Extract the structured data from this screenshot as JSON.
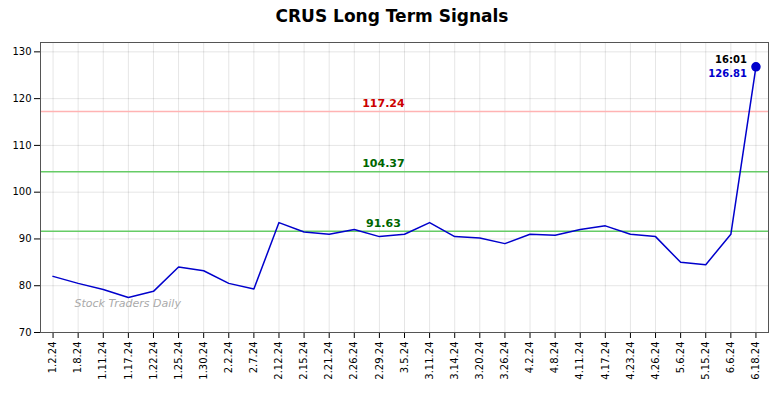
{
  "chart_data": {
    "type": "line",
    "title": "CRUS Long Term Signals",
    "categories": [
      "1.2.24",
      "1.8.24",
      "1.11.24",
      "1.17.24",
      "1.22.24",
      "1.25.24",
      "1.30.24",
      "2.2.24",
      "2.7.24",
      "2.12.24",
      "2.15.24",
      "2.21.24",
      "2.26.24",
      "2.29.24",
      "3.5.24",
      "3.11.24",
      "3.14.24",
      "3.20.24",
      "3.26.24",
      "4.2.24",
      "4.8.24",
      "4.11.24",
      "4.17.24",
      "4.23.24",
      "4.26.24",
      "5.6.24",
      "5.15.24",
      "6.6.24",
      "6.18.24"
    ],
    "values": [
      82.0,
      80.5,
      79.2,
      77.5,
      78.8,
      84.0,
      83.2,
      80.5,
      79.3,
      93.5,
      91.5,
      91.0,
      92.0,
      90.5,
      91.0,
      93.5,
      90.5,
      90.2,
      89.0,
      91.0,
      90.8,
      92.0,
      92.8,
      91.0,
      90.5,
      85.0,
      84.5,
      91.0,
      126.81
    ],
    "color": "#0000cc",
    "ylim": [
      70,
      132
    ],
    "yticks": [
      70,
      80,
      90,
      100,
      110,
      120,
      130
    ],
    "grid": true,
    "hlines": [
      {
        "y": 117.24,
        "label": "117.24",
        "color": "#ffb3b3",
        "label_color": "#cc0000"
      },
      {
        "y": 104.37,
        "label": "104.37",
        "color": "#66cc66",
        "label_color": "#006600"
      },
      {
        "y": 91.63,
        "label": "91.63",
        "color": "#66cc66",
        "label_color": "#006600"
      }
    ],
    "annotations": [
      {
        "x": "6.18.24",
        "y": 126.81,
        "text": "16:01",
        "color": "#000000"
      },
      {
        "x": "6.18.24",
        "y": 126.81,
        "text": "126.81",
        "color": "#0000cc"
      }
    ],
    "watermark": "Stock Traders Daily"
  }
}
